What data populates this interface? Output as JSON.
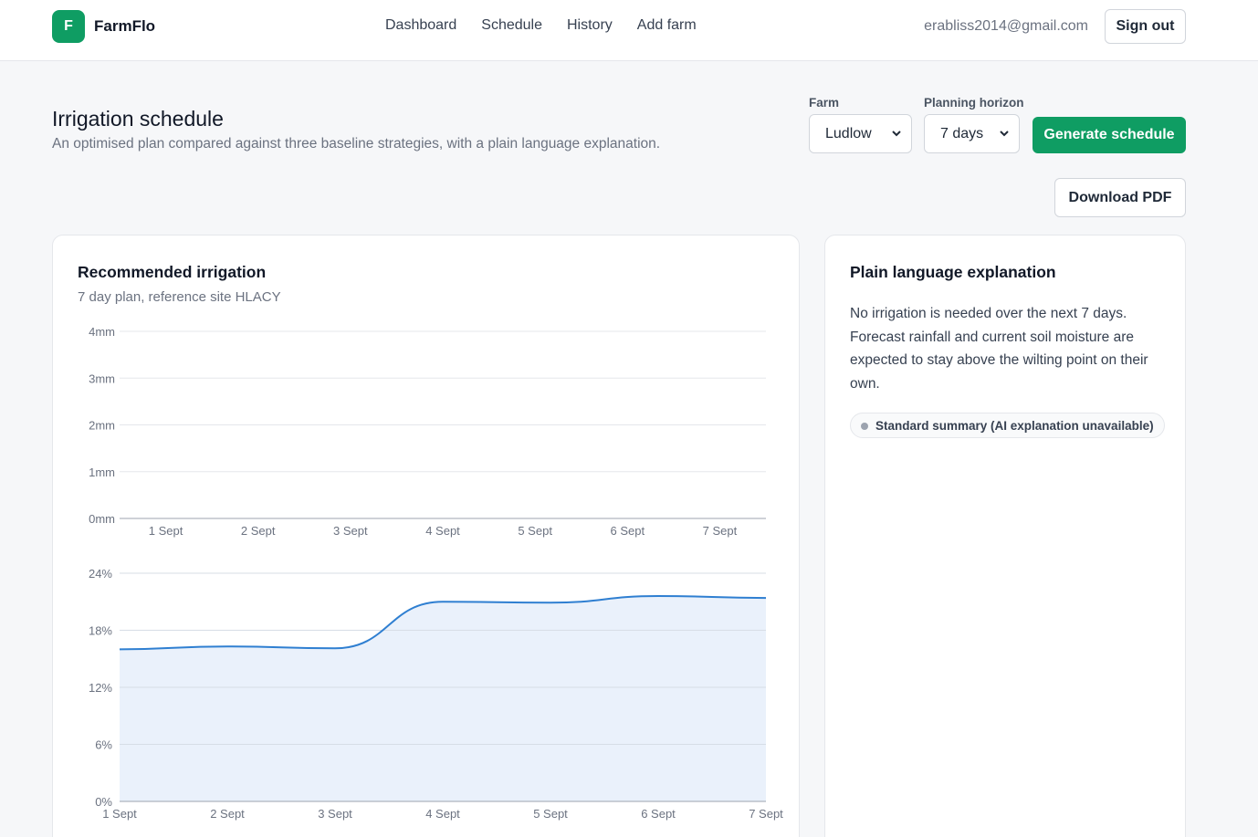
{
  "header": {
    "brand_initial": "F",
    "brand_name": "FarmFlo",
    "nav": [
      "Dashboard",
      "Schedule",
      "History",
      "Add farm"
    ],
    "email": "erabliss2014@gmail.com",
    "sign_out_label": "Sign out"
  },
  "page": {
    "title": "Irrigation schedule",
    "subtitle": "An optimised plan compared against three baseline strategies, with a plain language explanation."
  },
  "controls": {
    "farm_label": "Farm",
    "farm_value": "Ludlow",
    "horizon_label": "Planning horizon",
    "horizon_value": "7 days",
    "generate_label": "Generate schedule",
    "download_label": "Download PDF"
  },
  "recommended": {
    "title": "Recommended irrigation",
    "subtitle": "7 day plan, reference site HLACY"
  },
  "explanation": {
    "title": "Plain language explanation",
    "text": "No irrigation is needed over the next 7 days. Forecast rainfall and current soil moisture are expected to stay above the wilting point on their own.",
    "badge": "Standard summary (AI explanation unavailable)"
  },
  "colors": {
    "accent": "#0f9d63",
    "line": "#2f7fd1",
    "area_fill": "#eaf1fb"
  },
  "chart_data": [
    {
      "type": "bar",
      "categories": [
        "1 Sept",
        "2 Sept",
        "3 Sept",
        "4 Sept",
        "5 Sept",
        "6 Sept",
        "7 Sept"
      ],
      "values": [
        0,
        0,
        0,
        0,
        0,
        0,
        0
      ],
      "y_ticks": [
        "0mm",
        "1mm",
        "2mm",
        "3mm",
        "4mm"
      ],
      "ylim": [
        0,
        4
      ],
      "grid": true
    },
    {
      "type": "area",
      "x": [
        "1 Sept",
        "2 Sept",
        "3 Sept",
        "4 Sept",
        "5 Sept",
        "6 Sept",
        "7 Sept"
      ],
      "y_ticks": [
        "0%",
        "6%",
        "12%",
        "18%",
        "24%"
      ],
      "ylim": [
        0,
        24
      ],
      "series": [
        {
          "values": [
            16.0,
            16.3,
            16.1,
            21.0,
            20.9,
            21.6,
            21.4
          ]
        }
      ],
      "grid": true
    }
  ]
}
